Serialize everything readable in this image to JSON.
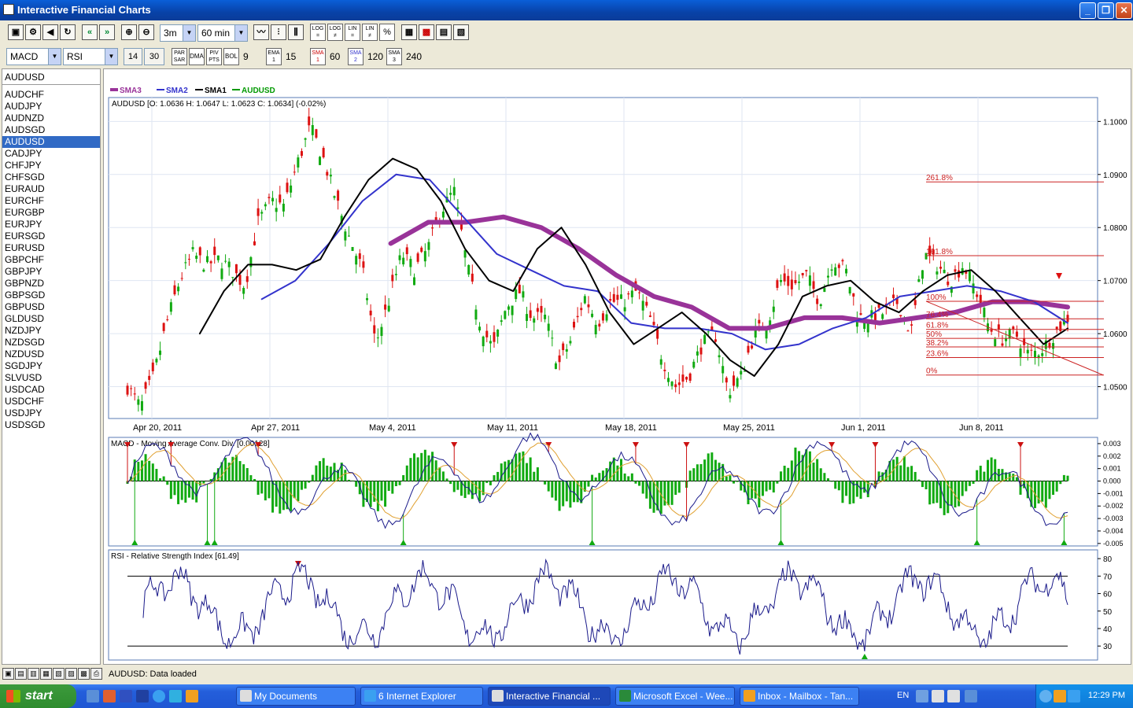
{
  "window": {
    "title": "Interactive Financial Charts",
    "buttons": [
      "_",
      "❐",
      "✕"
    ]
  },
  "toolbar1": {
    "icons": [
      "save-icon",
      "settings-icon",
      "sound-icon",
      "refresh-icon",
      "scroll-left-icon",
      "scroll-right-icon",
      "zoom-in-icon",
      "zoom-out-icon"
    ],
    "icon_glyphs": [
      "▣",
      "⚙",
      "◀",
      "↻",
      "«",
      "»",
      "⊕",
      "⊖"
    ],
    "period": "3m",
    "interval": "60 min",
    "chart_types": [
      "〰",
      "⫶",
      "⫼"
    ],
    "scale_buttons": [
      "LOG",
      "LOG",
      "LIN",
      "LIN",
      "%"
    ],
    "scale_sub": [
      "=",
      "≠",
      "=",
      "≠",
      ""
    ],
    "tools": [
      "▦",
      "▩",
      "▤",
      "▧"
    ]
  },
  "toolbar2": {
    "indicator1": "MACD",
    "indicator2": "RSI",
    "rsi_p1": "14",
    "rsi_p2": "30",
    "par_sar": "PAR SAR",
    "dma": "DMA",
    "piv_pts": "PIV PTS",
    "bol": "BOL",
    "bol_val": "9",
    "ema1": "EMA 1",
    "ema_val": "15",
    "sma1": "SMA 1",
    "sma1_val": "60",
    "sma2": "SMA 2",
    "sma2_val": "120",
    "sma3": "SMA 3",
    "sma3_val": "240"
  },
  "symbols": {
    "current": "AUDUSD",
    "selected": "AUDUSD",
    "list": [
      "AUDCHF",
      "AUDJPY",
      "AUDNZD",
      "AUDSGD",
      "AUDUSD",
      "CADJPY",
      "CHFJPY",
      "CHFSGD",
      "EURAUD",
      "EURCHF",
      "EURGBP",
      "EURJPY",
      "EURSGD",
      "EURUSD",
      "GBPCHF",
      "GBPJPY",
      "GBPNZD",
      "GBPSGD",
      "GBPUSD",
      "GLDUSD",
      "NZDJPY",
      "NZDSGD",
      "NZDUSD",
      "SGDJPY",
      "SLVUSD",
      "USDCAD",
      "USDCHF",
      "USDJPY",
      "USDSGD"
    ]
  },
  "chart_data": [
    {
      "type": "line",
      "legend": [
        "SMA3",
        "SMA2",
        "SMA1",
        "AUDUSD"
      ],
      "legend_colors": [
        "#993399",
        "#3333cc",
        "#000000",
        "#009900"
      ],
      "info": "AUDUSD [O: 1.0636  H: 1.0647  L: 1.0623  C: 1.0634] (-0.02%)",
      "x_ticks": [
        "Apr 20, 2011",
        "Apr 27, 2011",
        "May 4, 2011",
        "May 11, 2011",
        "May 18, 2011",
        "May 25, 2011",
        "Jun 1, 2011",
        "Jun 8, 2011"
      ],
      "y_ticks": [
        "1.1000",
        "1.0900",
        "1.0800",
        "1.0700",
        "1.0600",
        "1.0500"
      ],
      "ylim": [
        1.044,
        1.1045
      ],
      "fib_levels": [
        {
          "label": "261.8%",
          "value": 1.0886
        },
        {
          "label": "161.8%",
          "value": 1.0747
        },
        {
          "label": "100%",
          "value": 1.0661
        },
        {
          "label": "76.4%",
          "value": 1.0628
        },
        {
          "label": "61.8%",
          "value": 1.0608
        },
        {
          "label": "50%",
          "value": 1.0591
        },
        {
          "label": "38.2%",
          "value": 1.0575
        },
        {
          "label": "23.6%",
          "value": 1.0555
        },
        {
          "label": "0%",
          "value": 1.0522
        }
      ],
      "close_key": [
        1.05,
        1.046,
        1.052,
        1.062,
        1.07,
        1.075,
        1.073,
        1.074,
        1.072,
        1.069,
        1.081,
        1.085,
        1.084,
        1.092,
        1.099,
        1.093,
        1.085,
        1.078,
        1.072,
        1.058,
        1.066,
        1.075,
        1.072,
        1.076,
        1.083,
        1.087,
        1.073,
        1.062,
        1.057,
        1.065,
        1.068,
        1.063,
        1.063,
        1.054,
        1.059,
        1.067,
        1.062,
        1.066,
        1.066,
        1.068,
        1.063,
        1.055,
        1.05,
        1.052,
        1.058,
        1.06,
        1.049,
        1.052,
        1.06,
        1.062,
        1.07,
        1.069,
        1.071,
        1.066,
        1.074,
        1.072,
        1.063,
        1.063,
        1.064,
        1.066,
        1.06,
        1.075,
        1.073,
        1.07,
        1.073,
        1.068,
        1.061,
        1.059,
        1.06,
        1.056,
        1.057,
        1.06,
        1.063
      ],
      "sma1": [
        null,
        null,
        null,
        1.06,
        1.068,
        1.073,
        1.073,
        1.072,
        1.074,
        1.082,
        1.089,
        1.093,
        1.091,
        1.085,
        1.076,
        1.07,
        1.068,
        1.076,
        1.08,
        1.073,
        1.064,
        1.058,
        1.061,
        1.064,
        1.06,
        1.055,
        1.052,
        1.058,
        1.067,
        1.069,
        1.07,
        1.066,
        1.064,
        1.068,
        1.071,
        1.072,
        1.068,
        1.063,
        1.058,
        1.061
      ],
      "sma2": [
        null,
        null,
        null,
        null,
        1.0665,
        1.07,
        1.077,
        1.085,
        1.09,
        1.089,
        1.082,
        1.075,
        1.072,
        1.069,
        1.068,
        1.062,
        1.061,
        1.061,
        1.06,
        1.057,
        1.058,
        1.061,
        1.063,
        1.067,
        1.068,
        1.069,
        1.068,
        1.066,
        1.062
      ],
      "sma3": [
        null,
        null,
        null,
        null,
        null,
        null,
        null,
        1.077,
        1.081,
        1.081,
        1.082,
        1.08,
        1.076,
        1.071,
        1.067,
        1.065,
        1.061,
        1.061,
        1.063,
        1.063,
        1.062,
        1.063,
        1.064,
        1.066,
        1.066,
        1.065
      ]
    },
    {
      "type": "line",
      "title": "MACD - Moving Average Conv. Div. [0.00128]",
      "y_ticks": [
        "0.003",
        "0.002",
        "0.001",
        "0.000",
        "-0.001",
        "-0.002",
        "-0.003",
        "-0.004",
        "-0.005"
      ],
      "ylim": [
        -0.0052,
        0.0035
      ],
      "current": 0.00128
    },
    {
      "type": "line",
      "title": "RSI - Relative Strength Index [61.49]",
      "y_ticks": [
        "80",
        "70",
        "60",
        "50",
        "40",
        "30"
      ],
      "ylim": [
        22,
        85
      ],
      "bands": [
        70,
        30
      ],
      "current": 61.49
    }
  ],
  "status": {
    "message": "AUDUSD: Data loaded",
    "icons": [
      "▣",
      "▤",
      "▥",
      "▦",
      "▧",
      "▨",
      "▩",
      "⎙"
    ]
  },
  "taskbar": {
    "start": "start",
    "tasks": [
      {
        "label": "My Documents"
      },
      {
        "label": "6 Internet Explorer"
      },
      {
        "label": "Interactive Financial ..."
      },
      {
        "label": "Microsoft Excel - Wee..."
      },
      {
        "label": "Inbox - Mailbox - Tan..."
      }
    ],
    "lang": "EN",
    "clock": "12:29 PM"
  }
}
